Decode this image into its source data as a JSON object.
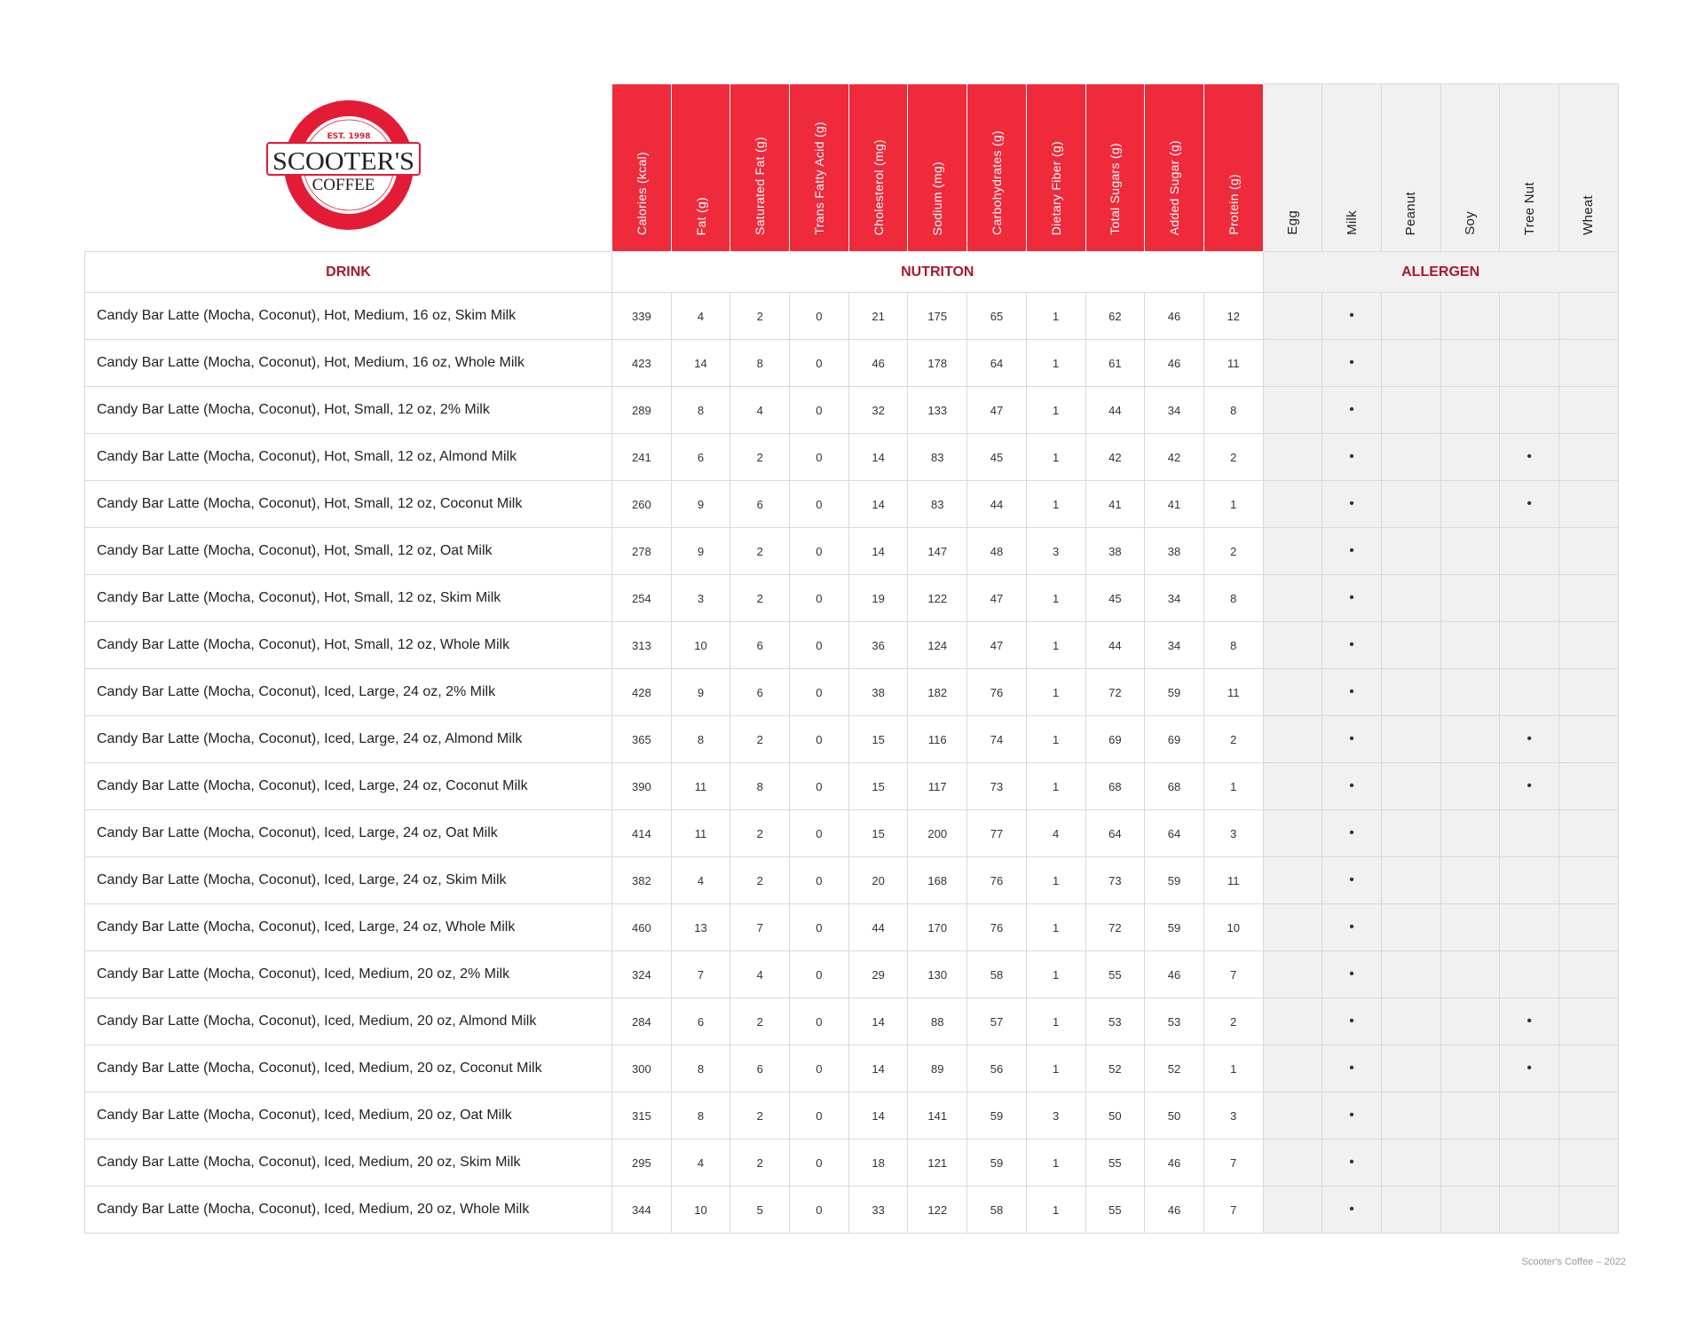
{
  "logo": {
    "text": "SCOOTER'S COFFEE",
    "est": "EST. 1998",
    "color": "#e31b37"
  },
  "sections": {
    "drink": "DRINK",
    "nutrition": "NUTRITON",
    "allergen": "ALLERGEN"
  },
  "nutrition_headers": [
    "Calories (kcal)",
    "Fat (g)",
    "Saturated Fat (g)",
    "Trans Fatty Acid (g)",
    "Cholesterol (mg)",
    "Sodium (mg)",
    "Carbohydrates (g)",
    "Dietary Fiber (g)",
    "Total Sugars (g)",
    "Added Sugar (g)",
    "Protein (g)"
  ],
  "allergen_headers": [
    "Egg",
    "Milk",
    "Peanut",
    "Soy",
    "Tree Nut",
    "Wheat"
  ],
  "allergen_mark": "•",
  "colors": {
    "header_red": "#ee2a3b",
    "section_label": "#a6192e",
    "allergen_bg": "#f1f1f1"
  },
  "rows": [
    {
      "drink": "Candy Bar Latte (Mocha, Coconut), Hot, Medium, 16 oz, Skim Milk",
      "values": [
        339,
        4,
        2,
        0,
        21,
        175,
        65,
        1,
        62,
        46,
        12
      ],
      "allergens": [
        false,
        true,
        false,
        false,
        false,
        false
      ]
    },
    {
      "drink": "Candy Bar Latte (Mocha, Coconut), Hot, Medium, 16 oz, Whole Milk",
      "values": [
        423,
        14,
        8,
        0,
        46,
        178,
        64,
        1,
        61,
        46,
        11
      ],
      "allergens": [
        false,
        true,
        false,
        false,
        false,
        false
      ]
    },
    {
      "drink": "Candy Bar Latte (Mocha, Coconut), Hot, Small, 12 oz, 2% Milk",
      "values": [
        289,
        8,
        4,
        0,
        32,
        133,
        47,
        1,
        44,
        34,
        8
      ],
      "allergens": [
        false,
        true,
        false,
        false,
        false,
        false
      ]
    },
    {
      "drink": "Candy Bar Latte (Mocha, Coconut), Hot, Small, 12 oz, Almond Milk",
      "values": [
        241,
        6,
        2,
        0,
        14,
        83,
        45,
        1,
        42,
        42,
        2
      ],
      "allergens": [
        false,
        true,
        false,
        false,
        true,
        false
      ]
    },
    {
      "drink": "Candy Bar Latte (Mocha, Coconut), Hot, Small, 12 oz, Coconut Milk",
      "values": [
        260,
        9,
        6,
        0,
        14,
        83,
        44,
        1,
        41,
        41,
        1
      ],
      "allergens": [
        false,
        true,
        false,
        false,
        true,
        false
      ]
    },
    {
      "drink": "Candy Bar Latte (Mocha, Coconut), Hot, Small, 12 oz, Oat Milk",
      "values": [
        278,
        9,
        2,
        0,
        14,
        147,
        48,
        3,
        38,
        38,
        2
      ],
      "allergens": [
        false,
        true,
        false,
        false,
        false,
        false
      ]
    },
    {
      "drink": "Candy Bar Latte (Mocha, Coconut), Hot, Small, 12 oz, Skim Milk",
      "values": [
        254,
        3,
        2,
        0,
        19,
        122,
        47,
        1,
        45,
        34,
        8
      ],
      "allergens": [
        false,
        true,
        false,
        false,
        false,
        false
      ]
    },
    {
      "drink": "Candy Bar Latte (Mocha, Coconut), Hot, Small, 12 oz, Whole Milk",
      "values": [
        313,
        10,
        6,
        0,
        36,
        124,
        47,
        1,
        44,
        34,
        8
      ],
      "allergens": [
        false,
        true,
        false,
        false,
        false,
        false
      ]
    },
    {
      "drink": "Candy Bar Latte (Mocha, Coconut), Iced, Large, 24 oz, 2% Milk",
      "values": [
        428,
        9,
        6,
        0,
        38,
        182,
        76,
        1,
        72,
        59,
        11
      ],
      "allergens": [
        false,
        true,
        false,
        false,
        false,
        false
      ]
    },
    {
      "drink": "Candy Bar Latte (Mocha, Coconut), Iced, Large, 24 oz, Almond Milk",
      "values": [
        365,
        8,
        2,
        0,
        15,
        116,
        74,
        1,
        69,
        69,
        2
      ],
      "allergens": [
        false,
        true,
        false,
        false,
        true,
        false
      ]
    },
    {
      "drink": "Candy Bar Latte (Mocha, Coconut), Iced, Large, 24 oz, Coconut Milk",
      "values": [
        390,
        11,
        8,
        0,
        15,
        117,
        73,
        1,
        68,
        68,
        1
      ],
      "allergens": [
        false,
        true,
        false,
        false,
        true,
        false
      ]
    },
    {
      "drink": "Candy Bar Latte (Mocha, Coconut), Iced, Large, 24 oz, Oat Milk",
      "values": [
        414,
        11,
        2,
        0,
        15,
        200,
        77,
        4,
        64,
        64,
        3
      ],
      "allergens": [
        false,
        true,
        false,
        false,
        false,
        false
      ]
    },
    {
      "drink": "Candy Bar Latte (Mocha, Coconut), Iced, Large, 24 oz, Skim Milk",
      "values": [
        382,
        4,
        2,
        0,
        20,
        168,
        76,
        1,
        73,
        59,
        11
      ],
      "allergens": [
        false,
        true,
        false,
        false,
        false,
        false
      ]
    },
    {
      "drink": "Candy Bar Latte (Mocha, Coconut), Iced, Large, 24 oz, Whole Milk",
      "values": [
        460,
        13,
        7,
        0,
        44,
        170,
        76,
        1,
        72,
        59,
        10
      ],
      "allergens": [
        false,
        true,
        false,
        false,
        false,
        false
      ]
    },
    {
      "drink": "Candy Bar Latte (Mocha, Coconut), Iced, Medium, 20 oz, 2% Milk",
      "values": [
        324,
        7,
        4,
        0,
        29,
        130,
        58,
        1,
        55,
        46,
        7
      ],
      "allergens": [
        false,
        true,
        false,
        false,
        false,
        false
      ]
    },
    {
      "drink": "Candy Bar Latte (Mocha, Coconut), Iced, Medium, 20 oz, Almond Milk",
      "values": [
        284,
        6,
        2,
        0,
        14,
        88,
        57,
        1,
        53,
        53,
        2
      ],
      "allergens": [
        false,
        true,
        false,
        false,
        true,
        false
      ]
    },
    {
      "drink": "Candy Bar Latte (Mocha, Coconut), Iced, Medium, 20 oz, Coconut Milk",
      "values": [
        300,
        8,
        6,
        0,
        14,
        89,
        56,
        1,
        52,
        52,
        1
      ],
      "allergens": [
        false,
        true,
        false,
        false,
        true,
        false
      ]
    },
    {
      "drink": "Candy Bar Latte (Mocha, Coconut), Iced, Medium, 20 oz, Oat Milk",
      "values": [
        315,
        8,
        2,
        0,
        14,
        141,
        59,
        3,
        50,
        50,
        3
      ],
      "allergens": [
        false,
        true,
        false,
        false,
        false,
        false
      ]
    },
    {
      "drink": "Candy Bar Latte (Mocha, Coconut), Iced, Medium, 20 oz, Skim Milk",
      "values": [
        295,
        4,
        2,
        0,
        18,
        121,
        59,
        1,
        55,
        46,
        7
      ],
      "allergens": [
        false,
        true,
        false,
        false,
        false,
        false
      ]
    },
    {
      "drink": "Candy Bar Latte (Mocha, Coconut), Iced, Medium, 20 oz, Whole Milk",
      "values": [
        344,
        10,
        5,
        0,
        33,
        122,
        58,
        1,
        55,
        46,
        7
      ],
      "allergens": [
        false,
        true,
        false,
        false,
        false,
        false
      ]
    }
  ],
  "footer": "Scooter's Coffee – 2022"
}
